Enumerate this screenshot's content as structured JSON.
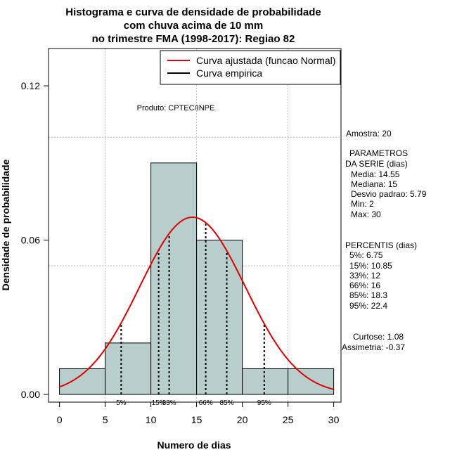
{
  "chart_data": {
    "type": "bar",
    "title": [
      "Histograma e curva de densidade de probabilidade",
      "com chuva acima de 10 mm",
      "no trimestre FMA (1998-2017): Regiao 82"
    ],
    "xlabel": "Numero de dias",
    "ylabel": "Densidade de probabilidade",
    "xlim": [
      -1.2,
      30.8
    ],
    "ylim": [
      -0.003,
      0.1345
    ],
    "x_ticks": [
      0,
      5,
      10,
      15,
      20,
      25,
      30
    ],
    "x_tick_labels": [
      "0",
      "5",
      "10",
      "15",
      "20",
      "25",
      "30"
    ],
    "y_ticks": [
      0.0,
      0.06,
      0.12
    ],
    "y_tick_labels": [
      "0.00",
      "0.06",
      "0.12"
    ],
    "grid_x": [
      5,
      15,
      25
    ],
    "grid_y": [
      0.05,
      0.1
    ],
    "bins": [
      {
        "start": 0,
        "end": 5,
        "density": 0.01
      },
      {
        "start": 5,
        "end": 10,
        "density": 0.02
      },
      {
        "start": 10,
        "end": 15,
        "density": 0.09
      },
      {
        "start": 15,
        "end": 20,
        "density": 0.06
      },
      {
        "start": 20,
        "end": 25,
        "density": 0.01
      },
      {
        "start": 25,
        "end": 30,
        "density": 0.01
      }
    ],
    "bar_color": "#b8cecd",
    "normal_fit": {
      "mean": 14.55,
      "sd": 5.79,
      "range": [
        0,
        30
      ],
      "color": "#e00000"
    },
    "percentiles": [
      {
        "label": "5%",
        "x": 6.75
      },
      {
        "label": "15%",
        "x": 10.85
      },
      {
        "label": "33%",
        "x": 12
      },
      {
        "label": "66%",
        "x": 16
      },
      {
        "label": "85%",
        "x": 18.3
      },
      {
        "label": "95%",
        "x": 22.4
      }
    ],
    "legend": {
      "position": "top-right",
      "entries": [
        {
          "label": "Curva ajustada (funcao Normal)",
          "color": "#e00000"
        },
        {
          "label": "Curva empirica",
          "color": "#000000"
        }
      ]
    },
    "annotation": "Produto: CPTEC/INPE"
  },
  "stats": {
    "amostra": "Amostra: 20",
    "params_title_1": "PARAMETROS",
    "params_title_2": "DA SERIE (dias)",
    "media": "Media: 14.55",
    "mediana": "Mediana: 15",
    "desvio": "Desvio padrao: 5.79",
    "min": "Min: 2",
    "max": "Max: 30",
    "percentis_title": "PERCENTIS (dias)",
    "p5": "5%: 6.75",
    "p15": "15%: 10.85",
    "p33": "33%: 12",
    "p66": "66%: 16",
    "p85": "85%: 18.3",
    "p95": "95%: 22.4",
    "curtose": "Curtose: 1.08",
    "assimetria": "Assimetria: -0.37"
  }
}
